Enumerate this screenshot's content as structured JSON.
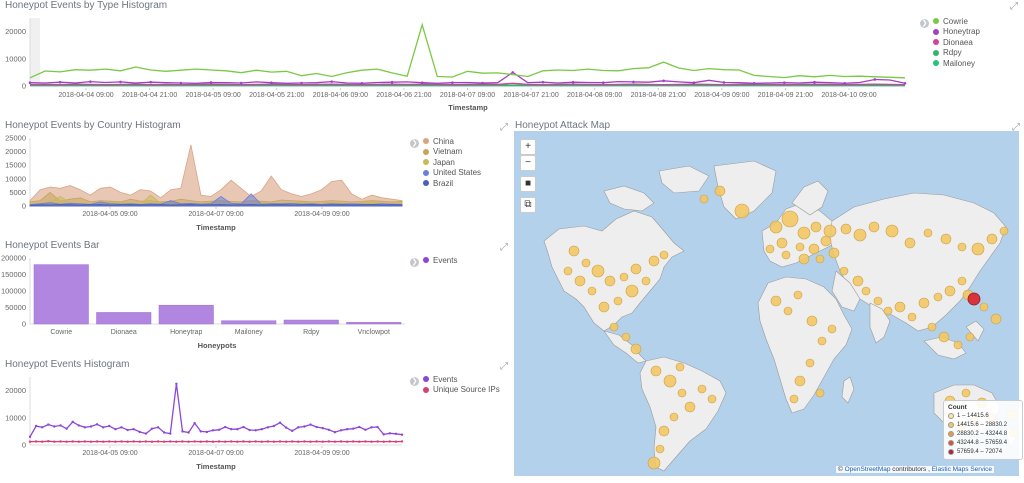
{
  "colors": {
    "cowrie": "#7ac943",
    "honeytrap": "#a33ec7",
    "dionaea": "#d63f9b",
    "rdpy": "#35b26b",
    "mailoney": "#26c27c",
    "china": "#d9a483",
    "vietnam": "#c7a45a",
    "japan": "#c9b95a",
    "united_states": "#6b80d8",
    "brazil": "#4a5fc1",
    "bar": "#b186e0",
    "events": "#8d47d4",
    "unique_ips": "#d63f7a",
    "map_bubble": "#f2c764",
    "map_hot": "#d9343c",
    "map_water": "#b4d1ec",
    "map_land": "#eeeeee"
  },
  "panels": {
    "type_hist": {
      "title": "Honeypot Events by Type Histogram",
      "xlabel": "Timestamp",
      "toggle": "❯",
      "legend": [
        "Cowrie",
        "Honeytrap",
        "Dionaea",
        "Rdpy",
        "Mailoney"
      ]
    },
    "country_hist": {
      "title": "Honeypot Events by Country Histogram",
      "xlabel": "Timestamp",
      "toggle": "❯",
      "legend": [
        "China",
        "Vietnam",
        "Japan",
        "United States",
        "Brazil"
      ]
    },
    "events_bar": {
      "title": "Honeypot Events Bar",
      "xlabel": "Honeypots",
      "toggle": "❯",
      "legend": [
        "Events"
      ]
    },
    "events_hist": {
      "title": "Honeypot Events Histogram",
      "xlabel": "Timestamp",
      "toggle": "❯",
      "legend": [
        "Events",
        "Unique Source IPs"
      ]
    },
    "attack_map": {
      "title": "Honeypot Attack Map",
      "controls": {
        "zoom_in": "+",
        "zoom_out": "−",
        "draw": "■",
        "crop": "⧉"
      },
      "legend_title": "Count",
      "legend_ranges": [
        "1 – 14415.6",
        "14415.6 – 28830.2",
        "28830.2 – 43244.8",
        "43244.8 – 57659.4",
        "57659.4 – 72074"
      ],
      "legend_colors": [
        "#fde79f",
        "#f2c764",
        "#ee9a3b",
        "#d9533a",
        "#b3232b"
      ],
      "attribution_prefix": "©",
      "attribution_osm": "OpenStreetMap",
      "attribution_mid": " contributors , ",
      "attribution_ems": "Elastic Maps Service"
    }
  },
  "chart_data": [
    {
      "type": "line",
      "title": "Honeypot Events by Type Histogram",
      "xlabel": "Timestamp",
      "ylim": [
        0,
        25000
      ],
      "yticks": [
        0,
        10000,
        20000
      ],
      "xtick_labels": [
        "2018-04-04 09:00",
        "2018-04-04 21:00",
        "2018-04-05 09:00",
        "2018-04-05 21:00",
        "2018-04-06 09:00",
        "2018-04-06 21:00",
        "2018-04-07 09:00",
        "2018-04-07 21:00",
        "2018-04-08 09:00",
        "2018-04-08 21:00",
        "2018-04-09 09:00",
        "2018-04-09 21:00",
        "2018-04-10 09:00"
      ],
      "series": [
        {
          "name": "Cowrie",
          "values": [
            3000,
            5500,
            5200,
            6000,
            5800,
            6200,
            5600,
            7000,
            5900,
            5400,
            5800,
            6200,
            5900,
            5600,
            4900,
            5800,
            5100,
            5400,
            3800,
            4600,
            3500,
            4900,
            5800,
            6200,
            4800,
            3600,
            22500,
            3500,
            3300,
            5400,
            4700,
            4800,
            4200,
            3500,
            5600,
            5900,
            5700,
            6200,
            5700,
            5600,
            6400,
            6700,
            8800,
            6600,
            5700,
            6400,
            6000,
            5900,
            3900,
            3500,
            3100,
            3800,
            3400,
            3900,
            3500,
            3600,
            3400,
            3200,
            3000
          ]
        },
        {
          "name": "Honeytrap",
          "values": [
            1200,
            1100,
            1400,
            1100,
            1600,
            1300,
            1500,
            1100,
            1400,
            1200,
            1100,
            1000,
            1300,
            1200,
            1100,
            1500,
            1200,
            1000,
            1100,
            1200,
            1600,
            1100,
            1000,
            1300,
            1400,
            1500,
            1200,
            1000,
            1200,
            1300,
            1100,
            1200,
            5000,
            1200,
            1400,
            1100,
            1400,
            1300,
            1200,
            1600,
            1500,
            1400,
            1900,
            1500,
            1200,
            2100,
            1300,
            1200,
            1000,
            1100,
            1200,
            1100,
            1400,
            1200,
            1000,
            1300,
            2400,
            2200,
            1000
          ]
        },
        {
          "name": "Dionaea",
          "values": [
            500,
            600,
            500,
            700,
            600,
            500,
            600,
            700,
            500,
            600,
            500,
            600,
            700,
            600,
            500,
            600,
            700,
            600,
            500,
            600,
            700,
            600,
            500,
            600,
            700,
            600,
            700,
            600,
            500,
            600,
            700,
            600,
            1000,
            600,
            500,
            600,
            700,
            600,
            500,
            600,
            700,
            600,
            500,
            600,
            700,
            600,
            500,
            600,
            700,
            600,
            500,
            600,
            700,
            600,
            500,
            600,
            700,
            600,
            500
          ]
        },
        {
          "name": "Rdpy",
          "values": [
            300,
            300,
            300,
            300,
            300,
            300,
            300,
            300,
            300,
            300,
            300,
            300,
            300,
            300,
            300,
            300,
            300,
            300,
            300,
            300,
            300,
            300,
            300,
            300,
            300,
            300,
            300,
            300,
            300,
            300,
            300,
            300,
            300,
            300,
            300,
            300,
            300,
            300,
            300,
            300,
            300,
            300,
            300,
            300,
            300,
            300,
            300,
            300,
            300,
            300,
            300,
            300,
            300,
            300,
            300,
            300,
            300,
            300,
            300
          ]
        },
        {
          "name": "Mailoney",
          "values": [
            100,
            100,
            100,
            100,
            100,
            100,
            100,
            100,
            100,
            100,
            100,
            100,
            100,
            100,
            100,
            100,
            100,
            100,
            100,
            100,
            100,
            100,
            100,
            100,
            100,
            100,
            100,
            100,
            100,
            100,
            100,
            100,
            100,
            100,
            100,
            100,
            100,
            100,
            100,
            100,
            100,
            100,
            100,
            100,
            100,
            100,
            100,
            100,
            100,
            100,
            100,
            100,
            100,
            100,
            100,
            100,
            100,
            100,
            100
          ]
        }
      ]
    },
    {
      "type": "area",
      "title": "Honeypot Events by Country Histogram",
      "xlabel": "Timestamp",
      "ylim": [
        0,
        25000
      ],
      "yticks": [
        0,
        5000,
        10000,
        15000,
        20000,
        25000
      ],
      "xtick_labels": [
        "2018-04-05 09:00",
        "2018-04-07 09:00",
        "2018-04-09 09:00"
      ],
      "series": [
        {
          "name": "China",
          "values": [
            2000,
            6000,
            7000,
            6500,
            7500,
            6000,
            4000,
            6500,
            7000,
            5000,
            4000,
            6000,
            5500,
            3000,
            6000,
            6500,
            22500,
            4000,
            3500,
            6000,
            9500,
            6500,
            3500,
            5500,
            11000,
            6000,
            4500,
            3500,
            4500,
            6000,
            9000,
            9500,
            4500,
            2500,
            4000,
            3000,
            2500,
            2000
          ]
        },
        {
          "name": "Vietnam",
          "values": [
            1500,
            2000,
            5000,
            1800,
            2500,
            3000,
            1500,
            2000,
            1800,
            1500,
            2500,
            1800,
            2000,
            1500,
            1700,
            2500,
            2000,
            1500,
            1800,
            2000,
            1700,
            1500,
            2000,
            1800,
            1500,
            2200,
            2000,
            1800,
            1500,
            1700,
            2000,
            1800,
            1500,
            1700,
            2000,
            1800,
            1500,
            1700
          ]
        },
        {
          "name": "Japan",
          "values": [
            800,
            1000,
            1500,
            3500,
            1200,
            1000,
            800,
            1000,
            1500,
            1200,
            1000,
            800,
            4000,
            1000,
            1200,
            1000,
            800,
            1000,
            1200,
            1500,
            1000,
            800,
            1000,
            1200,
            1000,
            800,
            1000,
            1200,
            1000,
            800,
            1200,
            1000,
            800,
            1000,
            1200,
            1000,
            800,
            1000
          ]
        },
        {
          "name": "United States",
          "values": [
            500,
            800,
            1200,
            700,
            1000,
            800,
            600,
            1500,
            900,
            700,
            800,
            600,
            900,
            700,
            2000,
            800,
            1000,
            700,
            900,
            3500,
            1000,
            800,
            4500,
            700,
            900,
            800,
            1000,
            700,
            800,
            600,
            900,
            700,
            800,
            700,
            600,
            800,
            700,
            600
          ]
        },
        {
          "name": "Brazil",
          "values": [
            300,
            500,
            400,
            600,
            500,
            400,
            500,
            600,
            400,
            500,
            600,
            400,
            500,
            600,
            400,
            500,
            600,
            400,
            500,
            600,
            400,
            500,
            600,
            400,
            500,
            600,
            400,
            500,
            600,
            400,
            500,
            600,
            400,
            500,
            600,
            400,
            500,
            400
          ]
        }
      ]
    },
    {
      "type": "bar",
      "title": "Honeypot Events Bar",
      "xlabel": "Honeypots",
      "ylim": [
        0,
        200000
      ],
      "yticks": [
        0,
        50000,
        100000,
        150000,
        200000
      ],
      "categories": [
        "Cowrie",
        "Dionaea",
        "Honeytrap",
        "Mailoney",
        "Rdpy",
        "Vnclowpot"
      ],
      "series": [
        {
          "name": "Events",
          "values": [
            180000,
            35000,
            57000,
            10000,
            12000,
            5000
          ]
        }
      ]
    },
    {
      "type": "line",
      "title": "Honeypot Events Histogram",
      "xlabel": "Timestamp",
      "ylim": [
        0,
        25000
      ],
      "yticks": [
        0,
        10000,
        20000
      ],
      "xtick_labels": [
        "2018-04-05 09:00",
        "2018-04-07 09:00",
        "2018-04-09 09:00"
      ],
      "series": [
        {
          "name": "Events",
          "values": [
            3000,
            7000,
            6500,
            7500,
            6800,
            7200,
            6000,
            8500,
            7200,
            6500,
            6800,
            7600,
            6500,
            7000,
            5800,
            6500,
            5500,
            5800,
            4800,
            4200,
            6000,
            6500,
            4600,
            4200,
            22500,
            5000,
            4600,
            8000,
            5000,
            4800,
            5400,
            5600,
            6600,
            5800,
            5800,
            6600,
            5500,
            5400,
            5800,
            6500,
            7000,
            8200,
            6400,
            5200,
            6500,
            6800,
            7500,
            6600,
            6200,
            5600,
            4700,
            5400,
            5800,
            6000,
            6600,
            5600,
            6500,
            6600,
            3900,
            4300,
            4100,
            3800
          ]
        },
        {
          "name": "Unique Source IPs",
          "values": [
            1200,
            1300,
            1200,
            1400,
            1200,
            1300,
            1200,
            1300,
            1200,
            1300,
            1200,
            1300,
            1200,
            1300,
            1200,
            1300,
            1200,
            1300,
            1200,
            1300,
            1200,
            1300,
            1200,
            1300,
            1200,
            1300,
            1200,
            1300,
            1200,
            1300,
            1200,
            1300,
            1200,
            1300,
            1200,
            1300,
            1200,
            1300,
            1200,
            1300,
            1200,
            1300,
            1200,
            1300,
            1200,
            1300,
            1200,
            1300,
            1200,
            1300,
            1200,
            1300,
            1200,
            1300,
            1200,
            1300,
            1200,
            1300,
            1200,
            1300,
            1200,
            1300
          ]
        }
      ]
    }
  ]
}
